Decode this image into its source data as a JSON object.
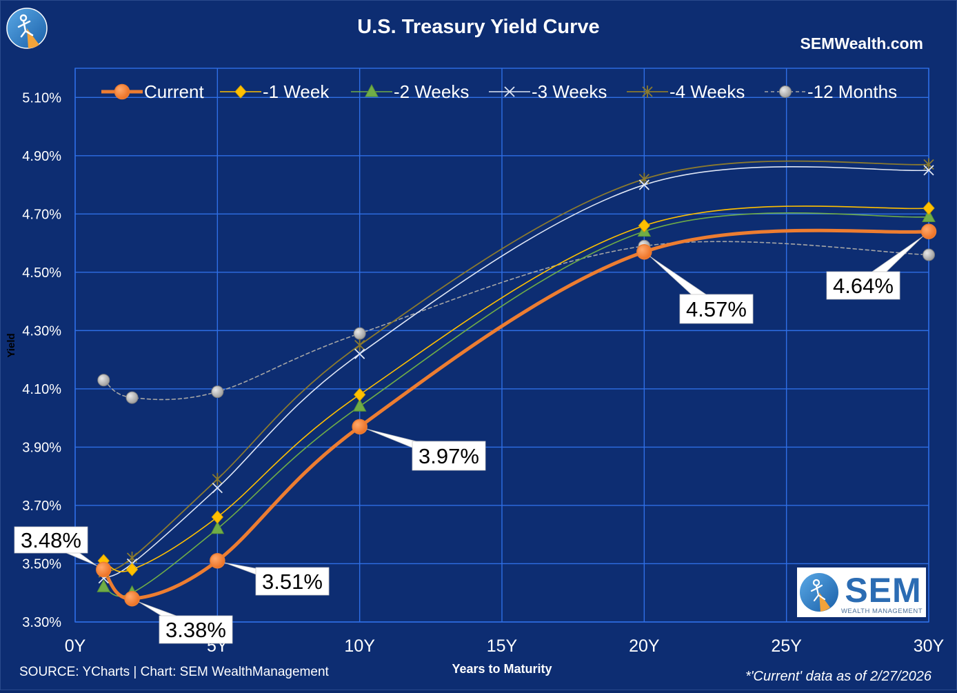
{
  "header": {
    "title": "U.S. Treasury Yield Curve",
    "site": "SEMWealth.com"
  },
  "footer": {
    "source": "SOURCE: YCharts | Chart: SEM WealthManagement",
    "asof": "*'Current' data as of 2/27/2026"
  },
  "logo": {
    "big_text": "SEM",
    "sub_text": "WEALTH MANAGEMENT"
  },
  "colors": {
    "background": "#0d2d72",
    "gridline": "#2f6fe6",
    "current": "#ed7d31",
    "week1": "#ffc000",
    "week2": "#70ad47",
    "week3": "#dfe6f5",
    "week4": "#8b7a2e",
    "month12": "#a6a6a6"
  },
  "chart_data": {
    "type": "line",
    "title": "U.S. Treasury Yield Curve",
    "xlabel": "Years to Maturity",
    "ylabel": "Yield",
    "xlim": [
      0,
      30
    ],
    "ylim": [
      3.3,
      5.2
    ],
    "x_ticks": [
      0,
      5,
      10,
      15,
      20,
      25,
      30
    ],
    "x_tick_labels": [
      "0Y",
      "5Y",
      "10Y",
      "15Y",
      "20Y",
      "25Y",
      "30Y"
    ],
    "y_ticks": [
      3.3,
      3.5,
      3.7,
      3.9,
      4.1,
      4.3,
      4.5,
      4.7,
      4.9,
      5.1
    ],
    "y_tick_labels": [
      "3.30%",
      "3.50%",
      "3.70%",
      "3.90%",
      "4.10%",
      "4.30%",
      "4.50%",
      "4.70%",
      "4.90%",
      "5.10%"
    ],
    "grid": true,
    "legend_position": "top",
    "x": [
      1,
      2,
      5,
      10,
      20,
      30
    ],
    "series": [
      {
        "name": "Current",
        "marker": "circle",
        "values": [
          3.48,
          3.38,
          3.51,
          3.97,
          4.57,
          4.64
        ]
      },
      {
        "name": "-1 Week",
        "marker": "diamond",
        "values": [
          3.51,
          3.48,
          3.66,
          4.08,
          4.66,
          4.72
        ]
      },
      {
        "name": "-2 Weeks",
        "marker": "triangle",
        "values": [
          3.42,
          3.4,
          3.62,
          4.04,
          4.64,
          4.69
        ]
      },
      {
        "name": "-3 Weeks",
        "marker": "x",
        "values": [
          3.45,
          3.5,
          3.76,
          4.22,
          4.8,
          4.85
        ]
      },
      {
        "name": "-4 Weeks",
        "marker": "star",
        "values": [
          3.47,
          3.52,
          3.79,
          4.25,
          4.82,
          4.87
        ]
      },
      {
        "name": "-12 Months",
        "marker": "circle",
        "values": [
          4.13,
          4.07,
          4.09,
          4.29,
          4.59,
          4.56
        ]
      }
    ],
    "data_labels": [
      "3.48%",
      "3.38%",
      "3.51%",
      "3.97%",
      "4.57%",
      "4.64%"
    ]
  }
}
